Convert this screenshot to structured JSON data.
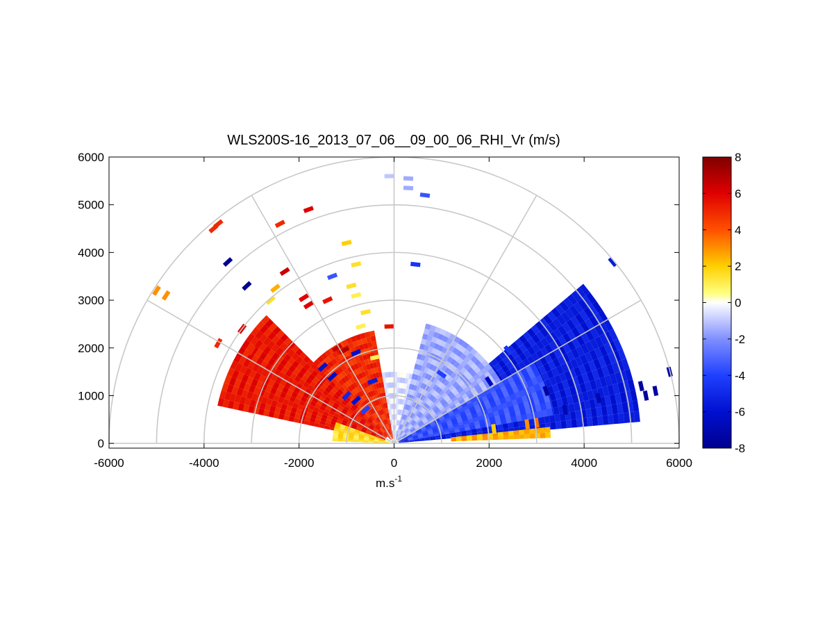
{
  "chart_data": {
    "type": "heatmap",
    "subtype": "polar RHI (range-height indicator) scan",
    "title": "WLS200S-16_2013_07_06__09_00_06_RHI_Vr (m/s)",
    "xlabel_main": "m.s",
    "xlabel_sup": "-1",
    "ylabel": "",
    "xlim": [
      -6000,
      6000
    ],
    "ylim": [
      -100,
      6000
    ],
    "xticks": [
      -6000,
      -4000,
      -2000,
      0,
      2000,
      4000,
      6000
    ],
    "yticks": [
      0,
      1000,
      2000,
      3000,
      4000,
      5000,
      6000
    ],
    "xtick_labels": [
      "-6000",
      "-4000",
      "-2000",
      "0",
      "2000",
      "4000",
      "6000"
    ],
    "ytick_labels": [
      "0",
      "1000",
      "2000",
      "3000",
      "4000",
      "5000",
      "6000"
    ],
    "polar_grid": {
      "rings": [
        1000,
        2000,
        3000,
        4000,
        5000,
        6000
      ],
      "spokes_deg": [
        0,
        30,
        60,
        90,
        120,
        150,
        180
      ]
    },
    "colorbar": {
      "limits": [
        -8,
        8
      ],
      "ticks": [
        -8,
        -6,
        -4,
        -2,
        0,
        2,
        4,
        6,
        8
      ],
      "tick_labels": [
        "-8",
        "-6",
        "-4",
        "-2",
        "0",
        "2",
        "4",
        "6",
        "8"
      ],
      "placement": "right",
      "colors": {
        "-8": "#00008f",
        "-6": "#0010d0",
        "-4": "#2040ff",
        "-2": "#7f8fff",
        "-0.5": "#dfe3ff",
        "0": "#ffffff",
        "0.5": "#ffff80",
        "2": "#ffcf00",
        "4": "#ff5000",
        "6": "#e00000",
        "8": "#800000"
      }
    },
    "velocity_regions": [
      {
        "az_from_deg": 5,
        "az_to_deg": 40,
        "range_from_m": 100,
        "range_to_m": 5200,
        "vr_ms": -5.5
      },
      {
        "az_from_deg": 10,
        "az_to_deg": 30,
        "range_from_m": 300,
        "range_to_m": 3400,
        "vr_ms": -3.5
      },
      {
        "az_from_deg": 30,
        "az_to_deg": 75,
        "range_from_m": 100,
        "range_to_m": 2600,
        "vr_ms": -1.5
      },
      {
        "az_from_deg": 75,
        "az_to_deg": 100,
        "range_from_m": 50,
        "range_to_m": 1500,
        "vr_ms": -0.5
      },
      {
        "az_from_deg": 2,
        "az_to_deg": 6,
        "range_from_m": 1200,
        "range_to_m": 3300,
        "vr_ms": 2.5
      },
      {
        "az_from_deg": 100,
        "az_to_deg": 135,
        "range_from_m": 100,
        "range_to_m": 2400,
        "vr_ms": 5.0
      },
      {
        "az_from_deg": 135,
        "az_to_deg": 168,
        "range_from_m": 200,
        "range_to_m": 3800,
        "vr_ms": 5.5
      },
      {
        "az_from_deg": 160,
        "az_to_deg": 178,
        "range_from_m": 100,
        "range_to_m": 1300,
        "vr_ms": 1.5
      }
    ],
    "scattered_gates": [
      {
        "x": -700,
        "y": 2450,
        "vr": 1.0
      },
      {
        "x": -900,
        "y": 3300,
        "vr": 1.5
      },
      {
        "x": -800,
        "y": 3100,
        "vr": 1.0
      },
      {
        "x": -1000,
        "y": 4200,
        "vr": 2.0
      },
      {
        "x": -1900,
        "y": 3050,
        "vr": 6.0
      },
      {
        "x": -1800,
        "y": 2900,
        "vr": 6.0
      },
      {
        "x": -2300,
        "y": 3600,
        "vr": 6.5
      },
      {
        "x": -2500,
        "y": 3250,
        "vr": 2.5
      },
      {
        "x": -3100,
        "y": 3300,
        "vr": -8.0
      },
      {
        "x": -3500,
        "y": 3800,
        "vr": -8.0
      },
      {
        "x": -3200,
        "y": 2400,
        "vr": 6.0
      },
      {
        "x": -3000,
        "y": 1950,
        "vr": 5.0
      },
      {
        "x": -3700,
        "y": 2100,
        "vr": 5.0
      },
      {
        "x": -2600,
        "y": 3000,
        "vr": 1.5
      },
      {
        "x": -1400,
        "y": 3000,
        "vr": 5.5
      },
      {
        "x": -1300,
        "y": 3500,
        "vr": -3.5
      },
      {
        "x": -800,
        "y": 3750,
        "vr": 1.5
      },
      {
        "x": -600,
        "y": 2750,
        "vr": 1.5
      },
      {
        "x": -4800,
        "y": 3100,
        "vr": 3.0
      },
      {
        "x": -5000,
        "y": 3200,
        "vr": 3.0
      },
      {
        "x": -3700,
        "y": 4600,
        "vr": 5.0
      },
      {
        "x": -3800,
        "y": 4500,
        "vr": 5.0
      },
      {
        "x": -2400,
        "y": 4600,
        "vr": 5.0
      },
      {
        "x": -1800,
        "y": 4900,
        "vr": 6.0
      },
      {
        "x": -100,
        "y": 2450,
        "vr": 5.5
      },
      {
        "x": -100,
        "y": 5600,
        "vr": -1.0
      },
      {
        "x": 300,
        "y": 5550,
        "vr": -1.5
      },
      {
        "x": 300,
        "y": 5350,
        "vr": -1.5
      },
      {
        "x": 650,
        "y": 5200,
        "vr": -3.5
      },
      {
        "x": 450,
        "y": 3750,
        "vr": -4.5
      },
      {
        "x": 2400,
        "y": 1950,
        "vr": -4.5
      },
      {
        "x": 4600,
        "y": 3800,
        "vr": -5.5
      },
      {
        "x": 4300,
        "y": 950,
        "vr": -7.0
      },
      {
        "x": 5200,
        "y": 1200,
        "vr": -7.5
      },
      {
        "x": 5300,
        "y": 1000,
        "vr": -7.5
      },
      {
        "x": 5500,
        "y": 1100,
        "vr": -7.5
      },
      {
        "x": 5800,
        "y": 1500,
        "vr": -7.5
      },
      {
        "x": -1200,
        "y": 2000,
        "vr": 6.5
      },
      {
        "x": -1050,
        "y": 1950,
        "vr": 7.0
      },
      {
        "x": -800,
        "y": 1900,
        "vr": -6.0
      },
      {
        "x": -600,
        "y": 1900,
        "vr": 4.0
      },
      {
        "x": -400,
        "y": 1800,
        "vr": 1.0
      },
      {
        "x": -1500,
        "y": 1600,
        "vr": -6.0
      },
      {
        "x": -1300,
        "y": 1400,
        "vr": -6.5
      },
      {
        "x": -1000,
        "y": 1000,
        "vr": -5.0
      },
      {
        "x": -800,
        "y": 900,
        "vr": -6.0
      },
      {
        "x": -600,
        "y": 700,
        "vr": -4.0
      },
      {
        "x": -450,
        "y": 1300,
        "vr": -5.5
      },
      {
        "x": 1000,
        "y": 1450,
        "vr": -4.0
      },
      {
        "x": 2000,
        "y": 1300,
        "vr": -6.5
      },
      {
        "x": 3200,
        "y": 1100,
        "vr": -7.5
      },
      {
        "x": 3600,
        "y": 700,
        "vr": -7.0
      },
      {
        "x": 2800,
        "y": 400,
        "vr": 3.0
      },
      {
        "x": 2100,
        "y": 300,
        "vr": 2.0
      },
      {
        "x": 3000,
        "y": 430,
        "vr": 3.5
      }
    ]
  }
}
